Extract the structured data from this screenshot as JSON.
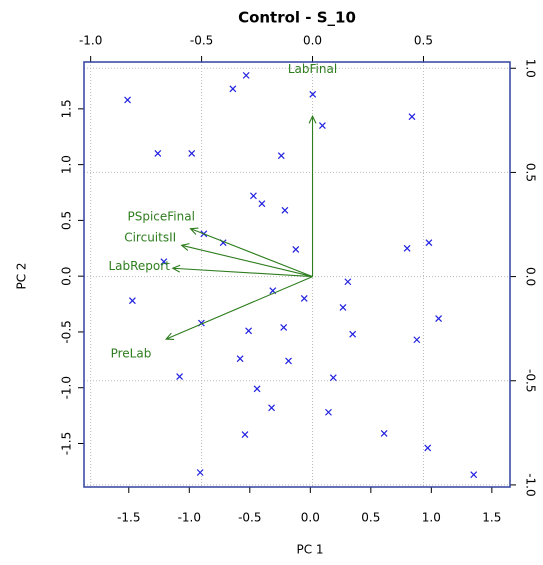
{
  "chart_data": {
    "type": "biplot",
    "title": "Control - S_10",
    "x_label": "PC 1",
    "y_label": "PC 2",
    "xlim": [
      -1.87,
      1.65
    ],
    "ylim": [
      -1.89,
      1.92
    ],
    "xticks": [
      -1.5,
      {
        "value": -1,
        "label": "-1.0"
      },
      -0.5,
      {
        "value": 0,
        "label": "0.0"
      },
      0.5,
      {
        "value": 1,
        "label": "1.0"
      },
      1.5
    ],
    "yticks": [
      -1.5,
      {
        "value": -1,
        "label": "-1.0"
      },
      -0.5,
      {
        "value": 0,
        "label": "0.0"
      },
      0.5,
      {
        "value": 1,
        "label": "1.0"
      },
      1.5
    ],
    "x2lim": [
      -1.03,
      0.89
    ],
    "y2lim": [
      -1.01,
      1.03
    ],
    "x2ticks": [
      {
        "value": -1,
        "label": "-1.0"
      },
      -0.5,
      {
        "value": 0,
        "label": "0.0"
      },
      0.5
    ],
    "y2ticks": [
      {
        "value": -1,
        "label": "-1.0"
      },
      -0.5,
      {
        "value": 0,
        "label": "0.0"
      },
      0.5,
      {
        "value": 1,
        "label": "1.0"
      }
    ],
    "grid": true,
    "points": {
      "color": "#2020e0",
      "x": [
        -1.51,
        -0.53,
        -0.64,
        0.02,
        0.1,
        0.84,
        -1.26,
        -0.98,
        -0.24,
        -0.47,
        -0.4,
        -0.21,
        -0.88,
        -0.72,
        -0.12,
        0.8,
        0.98,
        -1.21,
        0.31,
        -0.31,
        -0.05,
        -1.47,
        0.27,
        -0.9,
        -0.22,
        -0.51,
        0.35,
        1.06,
        0.88,
        -0.58,
        -0.18,
        -1.08,
        0.19,
        -0.44,
        -0.32,
        0.15,
        -0.54,
        0.61,
        0.97,
        -0.91,
        1.35
      ],
      "y": [
        1.58,
        1.8,
        1.68,
        1.63,
        1.35,
        1.43,
        1.1,
        1.1,
        1.08,
        0.72,
        0.65,
        0.59,
        0.38,
        0.3,
        0.24,
        0.25,
        0.3,
        0.13,
        -0.05,
        -0.13,
        -0.2,
        -0.22,
        -0.28,
        -0.42,
        -0.46,
        -0.49,
        -0.52,
        -0.38,
        -0.57,
        -0.74,
        -0.76,
        -0.9,
        -0.91,
        -1.01,
        -1.18,
        -1.22,
        -1.42,
        -1.41,
        -1.54,
        -1.76,
        -1.78
      ]
    },
    "loadings": {
      "color": "#2e7d1e",
      "names": [
        "LabFinal",
        "PSpiceFinal",
        "CircuitsII",
        "LabReport",
        "PreLab"
      ],
      "x": [
        0.0,
        -0.55,
        -0.59,
        -0.63,
        -0.66
      ],
      "y": [
        0.77,
        0.23,
        0.15,
        0.04,
        -0.3
      ]
    }
  }
}
